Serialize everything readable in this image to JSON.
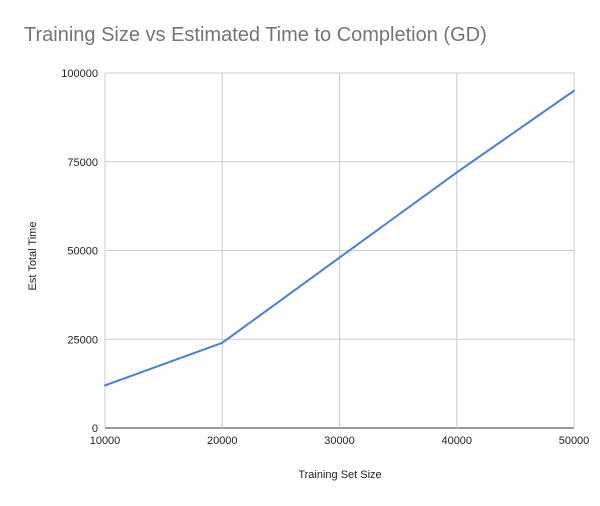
{
  "chart_data": {
    "type": "line",
    "title": "Training Size vs Estimated Time to Completion (GD)",
    "xlabel": "Training Set Size",
    "ylabel": "Est Total Time",
    "x": [
      10000,
      20000,
      30000,
      40000,
      50000
    ],
    "series": [
      {
        "values": [
          12000,
          24000,
          48000,
          72000,
          95000
        ]
      }
    ],
    "xlim": [
      10000,
      50000
    ],
    "ylim": [
      0,
      100000
    ],
    "xticks": [
      "10000",
      "20000",
      "30000",
      "40000",
      "50000"
    ],
    "yticks": [
      "0",
      "25000",
      "50000",
      "75000",
      "100000"
    ],
    "grid": true,
    "line_color": "#4a7fd6"
  }
}
